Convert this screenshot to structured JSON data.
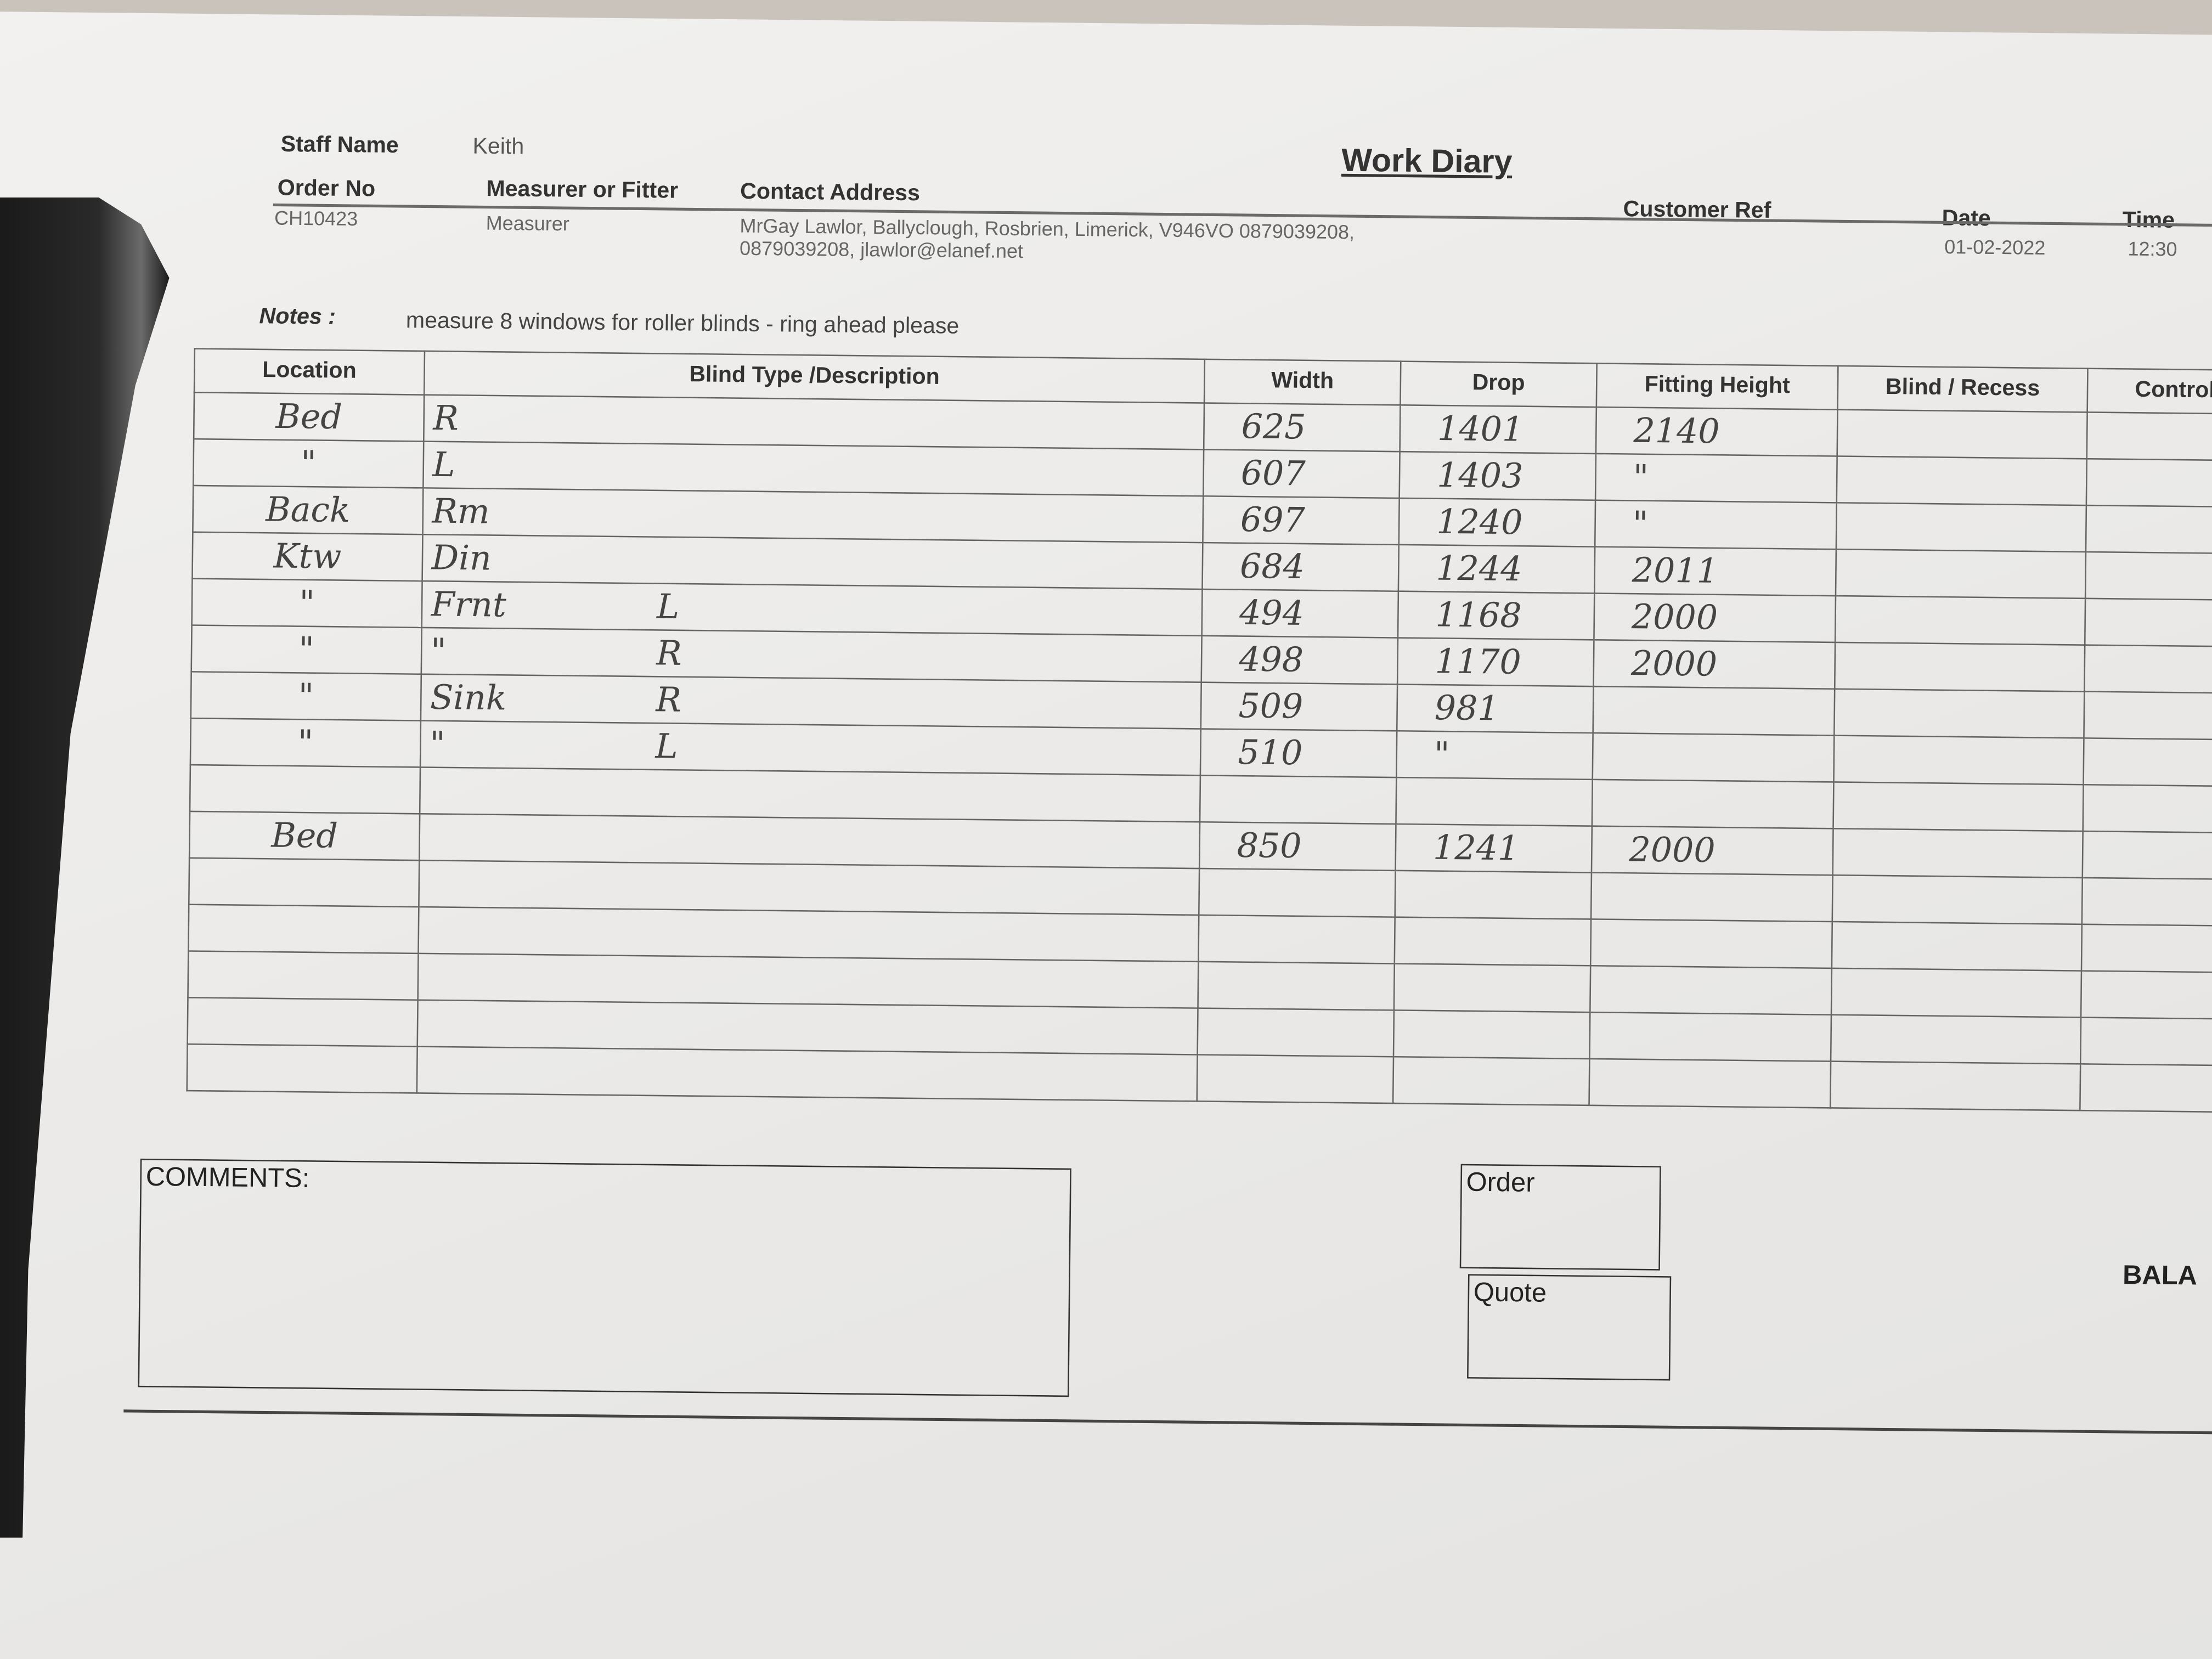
{
  "header": {
    "title": "Work Diary",
    "staff_name_label": "Staff Name",
    "staff_name": "Keith",
    "order_no_label": "Order No",
    "order_no": "CH10423",
    "measurer_label": "Measurer or Fitter",
    "measurer": "Measurer",
    "contact_label": "Contact Address",
    "contact_line1": "MrGay Lawlor, Ballyclough, Rosbrien, Limerick, V946VO 0879039208,",
    "contact_line2": "0879039208, jlawlor@elanef.net",
    "customer_ref_label": "Customer Ref",
    "date_label": "Date",
    "date": "01-02-2022",
    "time_label": "Time",
    "time": "12:30"
  },
  "notes": {
    "label": "Notes :",
    "text": "measure 8 windows for roller blinds - ring ahead please"
  },
  "table": {
    "columns": [
      "Location",
      "Blind Type /Description",
      "Width",
      "Drop",
      "Fitting Height",
      "Blind / Recess",
      "Controls"
    ],
    "rows": [
      {
        "location": "Bed",
        "type": "R",
        "side": "",
        "width": "625",
        "drop": "1401",
        "fitting": "2140"
      },
      {
        "location": "\"",
        "type": "L",
        "side": "",
        "width": "607",
        "drop": "1403",
        "fitting": "\""
      },
      {
        "location": "Back",
        "type": "Rm",
        "side": "",
        "width": "697",
        "drop": "1240",
        "fitting": "\""
      },
      {
        "location": "Ktw",
        "type": "Din",
        "side": "",
        "width": "684",
        "drop": "1244",
        "fitting": "2011"
      },
      {
        "location": "\"",
        "type": "Frnt",
        "side": "L",
        "width": "494",
        "drop": "1168",
        "fitting": "2000"
      },
      {
        "location": "\"",
        "type": "\"",
        "side": "R",
        "width": "498",
        "drop": "1170",
        "fitting": "2000"
      },
      {
        "location": "\"",
        "type": "Sink",
        "side": "R",
        "width": "509",
        "drop": "981",
        "fitting": ""
      },
      {
        "location": "\"",
        "type": "\"",
        "side": "L",
        "width": "510",
        "drop": "\"",
        "fitting": ""
      },
      {
        "location": "",
        "type": "",
        "side": "",
        "width": "",
        "drop": "",
        "fitting": ""
      },
      {
        "location": "Bed",
        "type": "",
        "side": "",
        "width": "850",
        "drop": "1241",
        "fitting": "2000"
      },
      {
        "location": "",
        "type": "",
        "side": "",
        "width": "",
        "drop": "",
        "fitting": ""
      },
      {
        "location": "",
        "type": "",
        "side": "",
        "width": "",
        "drop": "",
        "fitting": ""
      },
      {
        "location": "",
        "type": "",
        "side": "",
        "width": "",
        "drop": "",
        "fitting": ""
      },
      {
        "location": "",
        "type": "",
        "side": "",
        "width": "",
        "drop": "",
        "fitting": ""
      },
      {
        "location": "",
        "type": "",
        "side": "",
        "width": "",
        "drop": "",
        "fitting": ""
      }
    ]
  },
  "footer": {
    "comments_label": "COMMENTS:",
    "order_label": "Order",
    "quote_label": "Quote",
    "balance_label": "BALA"
  }
}
